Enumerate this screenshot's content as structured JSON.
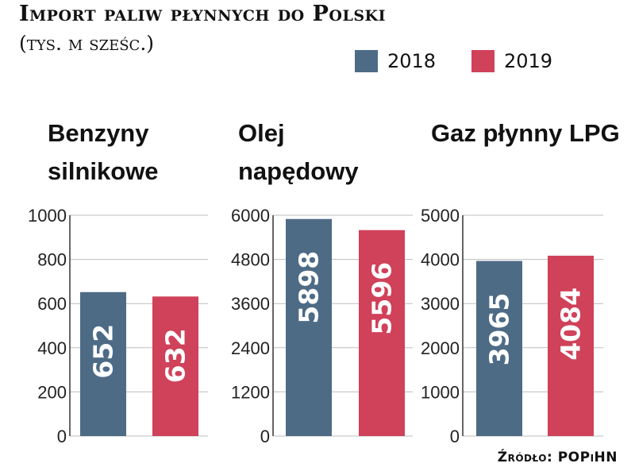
{
  "header": {
    "title": "Import paliw płynnych do Polski",
    "subtitle": "(tys. m sześc.)"
  },
  "legend": [
    {
      "label": "2018",
      "color": "#4e6b86"
    },
    {
      "label": "2019",
      "color": "#d0415a"
    }
  ],
  "source": "Źródło: POPiHN",
  "chart_data": [
    {
      "type": "bar",
      "title": "Benzyny silnikowe",
      "title_lines": [
        "Benzyny",
        "silnikowe"
      ],
      "categories": [
        "2018",
        "2019"
      ],
      "values": [
        652,
        632
      ],
      "value_labels": [
        "652",
        "632"
      ],
      "ylim": [
        0,
        1000
      ],
      "yticks": [
        0,
        200,
        400,
        600,
        800,
        1000
      ],
      "ytick_labels": [
        "0",
        "200",
        "400",
        "600",
        "800",
        "1000"
      ],
      "colors": [
        "#4e6b86",
        "#d0415a"
      ],
      "grid": true
    },
    {
      "type": "bar",
      "title": "Olej napędowy",
      "title_lines": [
        "Olej",
        "napędowy"
      ],
      "categories": [
        "2018",
        "2019"
      ],
      "values": [
        5898,
        5596
      ],
      "value_labels": [
        "5898",
        "5596"
      ],
      "ylim": [
        0,
        6000
      ],
      "yticks": [
        0,
        1200,
        2400,
        3600,
        4800,
        6000
      ],
      "ytick_labels": [
        "0",
        "1200",
        "2400",
        "3600",
        "4800",
        "6000"
      ],
      "colors": [
        "#4e6b86",
        "#d0415a"
      ],
      "grid": true
    },
    {
      "type": "bar",
      "title": "Gaz płynny LPG",
      "title_lines": [
        "Gaz płynny LPG"
      ],
      "categories": [
        "2018",
        "2019"
      ],
      "values": [
        3965,
        4084
      ],
      "value_labels": [
        "3965",
        "4084"
      ],
      "ylim": [
        0,
        5000
      ],
      "yticks": [
        0,
        1000,
        2000,
        3000,
        4000,
        5000
      ],
      "ytick_labels": [
        "0",
        "1000",
        "2000",
        "3000",
        "4000",
        "5000"
      ],
      "colors": [
        "#4e6b86",
        "#d0415a"
      ],
      "grid": true
    }
  ]
}
